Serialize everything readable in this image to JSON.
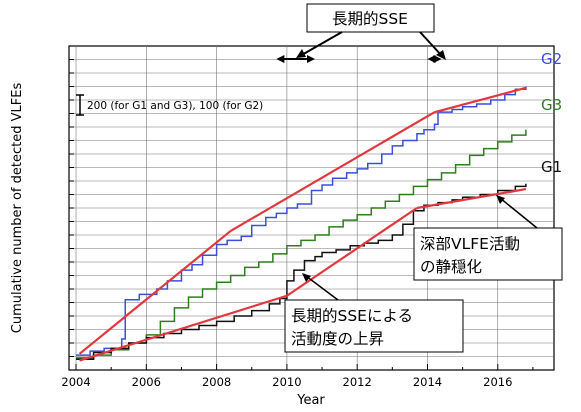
{
  "chart_data": {
    "type": "line",
    "xlabel": "Year",
    "ylabel": "Cumulative number of detected VLFEs",
    "xlim": [
      2003.8,
      2017.6
    ],
    "ylim": [
      0,
      24
    ],
    "x_ticks": [
      2004,
      2006,
      2008,
      2010,
      2012,
      2014,
      2016
    ],
    "x_tick_labels": [
      "2004",
      "2006",
      "2008",
      "2010",
      "2012",
      "2014",
      "2016"
    ],
    "grid": true,
    "scale_note": "200 (for G1 and G3), 100 (for G2)",
    "series": [
      {
        "name": "G2",
        "color": "#3b4fd8",
        "points": [
          [
            2004.0,
            1.1
          ],
          [
            2004.4,
            1.4
          ],
          [
            2004.8,
            1.6
          ],
          [
            2005.3,
            2.3
          ],
          [
            2005.4,
            5.2
          ],
          [
            2005.8,
            5.6
          ],
          [
            2006.3,
            6.0
          ],
          [
            2006.6,
            6.6
          ],
          [
            2007.0,
            7.4
          ],
          [
            2007.3,
            7.8
          ],
          [
            2007.6,
            8.5
          ],
          [
            2008.0,
            9.3
          ],
          [
            2008.3,
            9.6
          ],
          [
            2008.7,
            9.9
          ],
          [
            2009.0,
            10.7
          ],
          [
            2009.4,
            11.3
          ],
          [
            2009.7,
            11.6
          ],
          [
            2010.0,
            12.0
          ],
          [
            2010.3,
            12.3
          ],
          [
            2010.7,
            13.3
          ],
          [
            2011.0,
            13.7
          ],
          [
            2011.3,
            14.2
          ],
          [
            2011.7,
            14.6
          ],
          [
            2012.0,
            14.9
          ],
          [
            2012.3,
            15.3
          ],
          [
            2012.7,
            16.0
          ],
          [
            2013.0,
            16.6
          ],
          [
            2013.3,
            17.0
          ],
          [
            2013.7,
            17.5
          ],
          [
            2013.9,
            17.8
          ],
          [
            2014.2,
            18.2
          ],
          [
            2014.3,
            19.1
          ],
          [
            2014.7,
            19.3
          ],
          [
            2015.0,
            19.5
          ],
          [
            2015.4,
            19.7
          ],
          [
            2015.8,
            20.0
          ],
          [
            2016.2,
            20.4
          ],
          [
            2016.5,
            20.8
          ],
          [
            2016.8,
            21.0
          ]
        ],
        "trend": [
          [
            2004.1,
            1.2
          ],
          [
            2008.4,
            10.3
          ],
          [
            2014.2,
            19.1
          ],
          [
            2016.8,
            20.9
          ]
        ]
      },
      {
        "name": "G3",
        "color": "#2e7d1e",
        "points": [
          [
            2004.0,
            0.9
          ],
          [
            2004.5,
            1.1
          ],
          [
            2005.0,
            1.5
          ],
          [
            2005.5,
            2.0
          ],
          [
            2006.0,
            2.6
          ],
          [
            2006.4,
            3.6
          ],
          [
            2006.8,
            4.6
          ],
          [
            2007.2,
            5.4
          ],
          [
            2007.6,
            6.0
          ],
          [
            2008.0,
            6.5
          ],
          [
            2008.4,
            7.0
          ],
          [
            2008.8,
            7.6
          ],
          [
            2009.2,
            8.0
          ],
          [
            2009.6,
            8.6
          ],
          [
            2010.0,
            9.2
          ],
          [
            2010.4,
            9.6
          ],
          [
            2010.8,
            10.0
          ],
          [
            2011.2,
            10.6
          ],
          [
            2011.6,
            11.1
          ],
          [
            2012.0,
            11.5
          ],
          [
            2012.4,
            12.0
          ],
          [
            2012.8,
            12.5
          ],
          [
            2013.2,
            13.0
          ],
          [
            2013.6,
            13.6
          ],
          [
            2014.0,
            14.1
          ],
          [
            2014.4,
            14.6
          ],
          [
            2014.8,
            15.2
          ],
          [
            2015.2,
            15.9
          ],
          [
            2015.6,
            16.4
          ],
          [
            2016.0,
            16.9
          ],
          [
            2016.4,
            17.4
          ],
          [
            2016.8,
            17.8
          ]
        ]
      },
      {
        "name": "G1",
        "color": "#111111",
        "points": [
          [
            2004.0,
            0.8
          ],
          [
            2004.5,
            1.3
          ],
          [
            2005.0,
            1.6
          ],
          [
            2005.5,
            2.0
          ],
          [
            2006.0,
            2.4
          ],
          [
            2006.5,
            2.7
          ],
          [
            2007.0,
            3.0
          ],
          [
            2007.5,
            3.3
          ],
          [
            2008.0,
            3.6
          ],
          [
            2008.5,
            4.0
          ],
          [
            2009.0,
            4.4
          ],
          [
            2009.5,
            4.9
          ],
          [
            2009.8,
            5.3
          ],
          [
            2010.0,
            6.6
          ],
          [
            2010.2,
            7.4
          ],
          [
            2010.5,
            8.1
          ],
          [
            2010.8,
            8.4
          ],
          [
            2011.0,
            8.7
          ],
          [
            2011.4,
            8.9
          ],
          [
            2011.8,
            9.2
          ],
          [
            2012.2,
            9.4
          ],
          [
            2012.6,
            9.6
          ],
          [
            2013.0,
            10.0
          ],
          [
            2013.3,
            10.8
          ],
          [
            2013.6,
            11.8
          ],
          [
            2013.9,
            12.2
          ],
          [
            2014.3,
            12.4
          ],
          [
            2014.7,
            12.6
          ],
          [
            2015.0,
            12.8
          ],
          [
            2015.5,
            13.0
          ],
          [
            2016.0,
            13.3
          ],
          [
            2016.5,
            13.6
          ],
          [
            2016.8,
            13.8
          ]
        ],
        "trend": [
          [
            2004.1,
            0.7
          ],
          [
            2010.0,
            5.5
          ],
          [
            2013.7,
            12.0
          ],
          [
            2016.8,
            13.4
          ]
        ]
      }
    ],
    "sse_markers": [
      {
        "x_range": [
          2009.7,
          2010.8
        ],
        "label": "長期的SSE"
      },
      {
        "x_range": [
          2014.0,
          2014.4
        ],
        "label": "長期的SSE"
      }
    ],
    "annotations": [
      {
        "lines": [
          "深部VLFE活動",
          "の静穏化"
        ]
      },
      {
        "lines": [
          "長期的SSEによる",
          "活動度の上昇"
        ]
      }
    ],
    "colors": {
      "trend": "#e0383e",
      "frame": "#000000",
      "grid": "#777777"
    }
  }
}
